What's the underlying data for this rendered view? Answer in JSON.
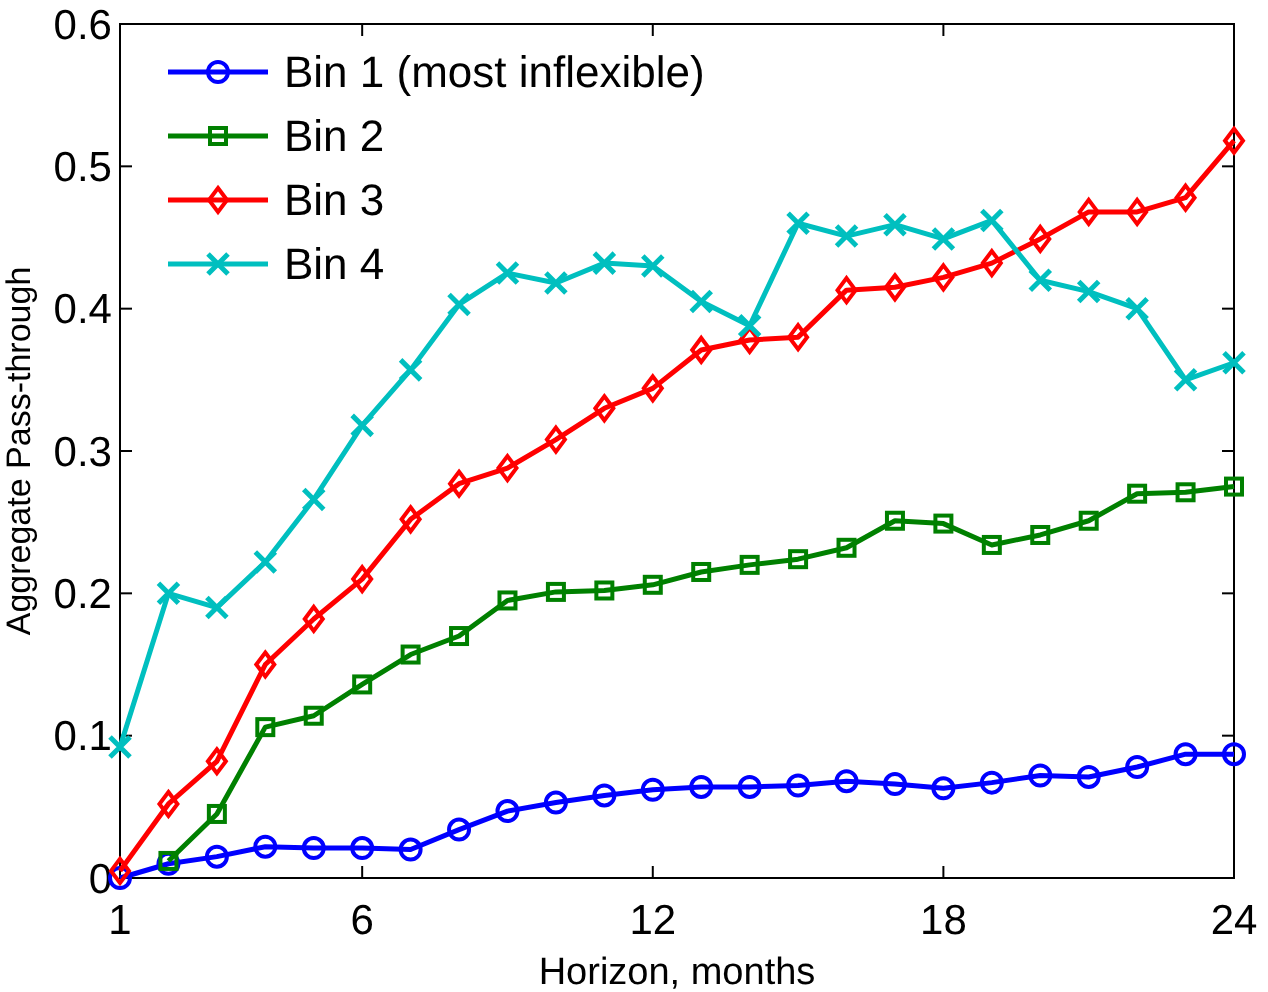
{
  "chart_data": {
    "type": "line",
    "xlabel": "Horizon, months",
    "ylabel": "Aggregate Pass-through",
    "x": [
      1,
      2,
      3,
      4,
      5,
      6,
      7,
      8,
      9,
      10,
      11,
      12,
      13,
      14,
      15,
      16,
      17,
      18,
      19,
      20,
      21,
      22,
      23,
      24
    ],
    "xlim": [
      1,
      24
    ],
    "xticks": [
      1,
      6,
      12,
      18,
      24
    ],
    "ylim": [
      0,
      0.6
    ],
    "yticks": [
      0,
      0.1,
      0.2,
      0.3,
      0.4,
      0.5,
      0.6
    ],
    "grid": false,
    "legend": "top left",
    "line_style": "solid",
    "series": [
      {
        "name": "Bin 1 (most inflexible)",
        "color": "#0000ff",
        "marker": "circle",
        "values": [
          0,
          0.01,
          0.015,
          0.022,
          0.021,
          0.021,
          0.02,
          0.034,
          0.047,
          0.053,
          0.058,
          0.062,
          0.064,
          0.064,
          0.065,
          0.068,
          0.066,
          0.063,
          0.067,
          0.072,
          0.071,
          0.078,
          0.087,
          0.087
        ]
      },
      {
        "name": "Bin 2",
        "color": "#008000",
        "marker": "square",
        "values": [
          null,
          0.012,
          0.045,
          0.106,
          0.114,
          0.136,
          0.157,
          0.17,
          0.195,
          0.201,
          0.202,
          0.206,
          0.215,
          0.22,
          0.224,
          0.232,
          0.251,
          0.249,
          0.234,
          0.241,
          0.251,
          0.27,
          0.271,
          0.275
        ]
      },
      {
        "name": "Bin 3",
        "color": "#ff0000",
        "marker": "diamond",
        "values": [
          0.005,
          0.052,
          0.082,
          0.15,
          0.182,
          0.21,
          0.252,
          0.277,
          0.288,
          0.308,
          0.33,
          0.344,
          0.371,
          0.378,
          0.38,
          0.413,
          0.415,
          0.422,
          0.432,
          0.449,
          0.468,
          0.468,
          0.478,
          0.518
        ]
      },
      {
        "name": "Bin 4",
        "color": "#00bfbf",
        "marker": "cross",
        "values": [
          0.092,
          0.2,
          0.19,
          0.222,
          0.266,
          0.318,
          0.357,
          0.403,
          0.425,
          0.418,
          0.432,
          0.43,
          0.405,
          0.388,
          0.46,
          0.451,
          0.459,
          0.449,
          0.462,
          0.42,
          0.412,
          0.4,
          0.35,
          0.362
        ]
      }
    ]
  }
}
